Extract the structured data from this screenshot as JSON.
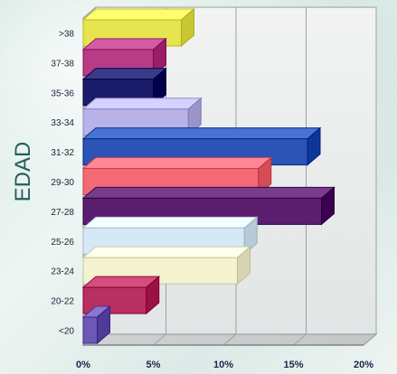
{
  "chart_data": {
    "type": "bar",
    "orientation": "horizontal",
    "title": "",
    "ylabel": "EDAD",
    "xlabel": "",
    "categories": [
      ">38",
      "37-38",
      "35-36",
      "33-34",
      "31-32",
      "29-30",
      "27-28",
      "25-26",
      "23-24",
      "20-22",
      "<20"
    ],
    "values": [
      7.0,
      5.0,
      5.0,
      7.5,
      16.0,
      12.5,
      17.0,
      11.5,
      11.0,
      4.5,
      1.0
    ],
    "xlim": [
      0,
      20
    ],
    "xticks": [
      "0%",
      "5%",
      "10%",
      "15%",
      "20%"
    ],
    "grid": true,
    "legend": "none",
    "colors": [
      "#e6e44f",
      "#b73c86",
      "#1b1c6c",
      "#b7b2e8",
      "#2c54b7",
      "#f26a74",
      "#5b1e6f",
      "#d4e8f5",
      "#f5f2cf",
      "#b82f62",
      "#6d58b6"
    ]
  }
}
